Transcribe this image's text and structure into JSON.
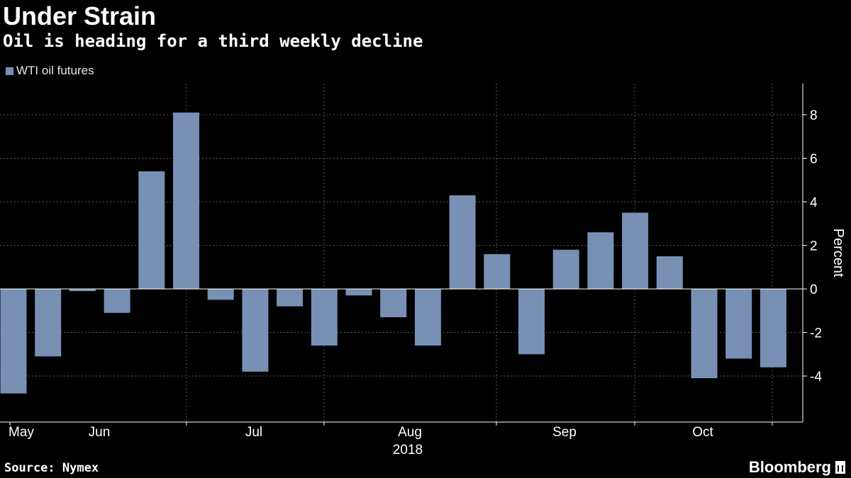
{
  "header": {
    "title": "Under Strain",
    "subtitle": "Oil is heading for a third weekly decline"
  },
  "footer": {
    "source": "Source: Nymex",
    "brand": "Bloomberg"
  },
  "colors": {
    "background": "#000000",
    "bar": "#7790b4",
    "grid": "#5a5a5a",
    "axis": "#ffffff"
  },
  "chart_data": {
    "type": "bar",
    "title": "Under Strain",
    "subtitle": "Oil is heading for a third weekly decline",
    "ylabel": "Percent",
    "ylim": [
      -6,
      9
    ],
    "yticks": [
      -4,
      -2,
      0,
      2,
      4,
      6,
      8
    ],
    "ytick_labels": [
      "-4",
      "-2",
      "0",
      "2",
      "4",
      "6",
      "8"
    ],
    "xticks": [
      "May",
      "Jun",
      "Jul",
      "Aug",
      "Sep",
      "Oct"
    ],
    "year_label": "2018",
    "grid": true,
    "legend_position": "top-left",
    "series": [
      {
        "name": "WTI oil futures",
        "color": "#7790b4",
        "values": [
          -4.8,
          -3.1,
          -0.1,
          -1.1,
          5.4,
          8.1,
          -0.5,
          -3.8,
          -0.8,
          -2.6,
          -0.3,
          -1.3,
          -2.6,
          4.3,
          1.6,
          -3.0,
          1.8,
          2.6,
          3.5,
          1.5,
          -4.1,
          -3.2,
          -3.6
        ]
      }
    ]
  }
}
